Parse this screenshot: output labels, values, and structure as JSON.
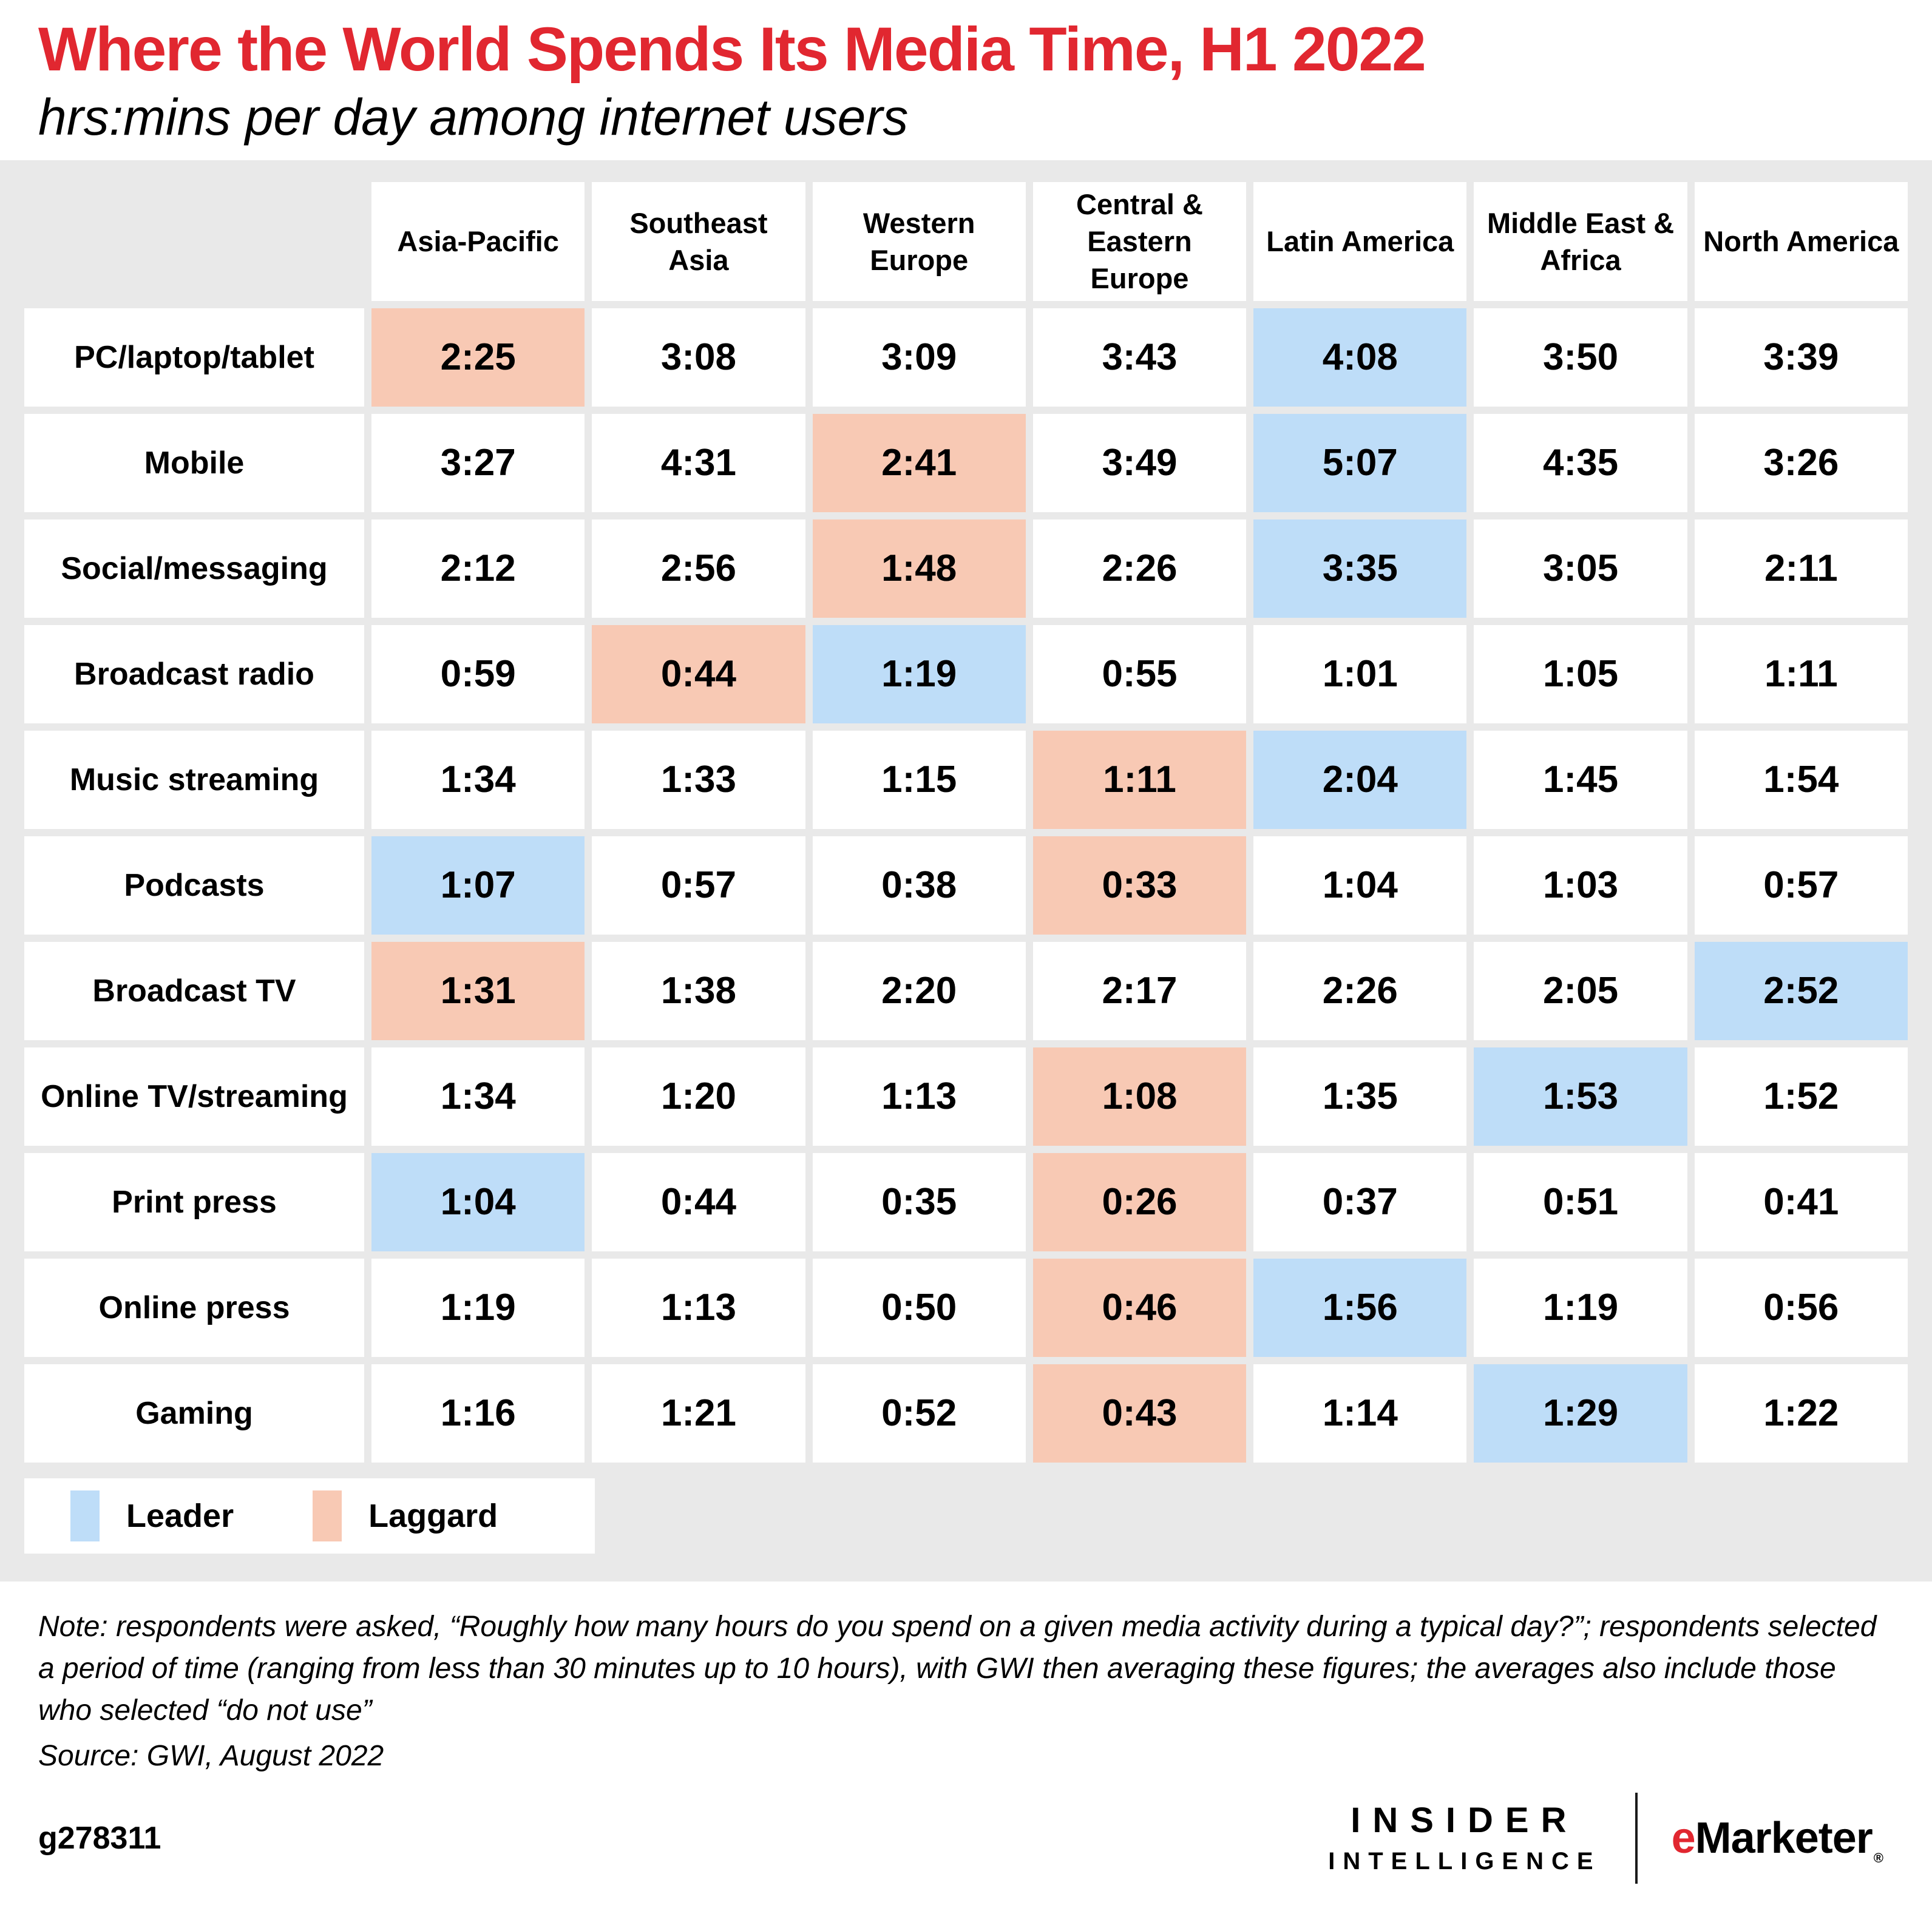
{
  "title": "Where the World Spends Its Media Time, H1 2022",
  "subtitle": "hrs:mins per day among internet users",
  "legend": {
    "leader_label": "Leader",
    "laggard_label": "Laggard"
  },
  "footer": {
    "note": "Note: respondents were asked, “Roughly how many hours do you spend on a given media activity during a typical day?”; respondents selected a period of time (ranging from less than 30 minutes up to 10 hours), with GWI then averaging these figures; the averages also include those who selected “do not use”",
    "source": "Source: GWI, August 2022",
    "chart_id": "g278311"
  },
  "branding": {
    "insider_line1": "INSIDER",
    "insider_line2": "INTELLIGENCE",
    "emarketer_e": "e",
    "emarketer_rest": "Marketer",
    "registered_mark": "®"
  },
  "colors": {
    "accent_red": "#E12730",
    "leader_blue": "#BEDDF8",
    "laggard_salmon": "#F8C9B4",
    "band_gray": "#E9E9E9"
  },
  "chart_data": {
    "type": "table",
    "title": "Where the World Spends Its Media Time, H1 2022",
    "unit": "hrs:mins per day among internet users",
    "categories": [
      "Asia-Pacific",
      "Southeast Asia",
      "Western Europe",
      "Central & Eastern Europe",
      "Latin America",
      "Middle East & Africa",
      "North America"
    ],
    "legend": [
      "Leader",
      "Laggard"
    ],
    "rows": [
      {
        "label": "PC/laptop/tablet",
        "values": [
          "2:25",
          "3:08",
          "3:09",
          "3:43",
          "4:08",
          "3:50",
          "3:39"
        ],
        "leader_index": 4,
        "laggard_index": 0
      },
      {
        "label": "Mobile",
        "values": [
          "3:27",
          "4:31",
          "2:41",
          "3:49",
          "5:07",
          "4:35",
          "3:26"
        ],
        "leader_index": 4,
        "laggard_index": 2
      },
      {
        "label": "Social/messaging",
        "values": [
          "2:12",
          "2:56",
          "1:48",
          "2:26",
          "3:35",
          "3:05",
          "2:11"
        ],
        "leader_index": 4,
        "laggard_index": 2
      },
      {
        "label": "Broadcast radio",
        "values": [
          "0:59",
          "0:44",
          "1:19",
          "0:55",
          "1:01",
          "1:05",
          "1:11"
        ],
        "leader_index": 2,
        "laggard_index": 1
      },
      {
        "label": "Music streaming",
        "values": [
          "1:34",
          "1:33",
          "1:15",
          "1:11",
          "2:04",
          "1:45",
          "1:54"
        ],
        "leader_index": 4,
        "laggard_index": 3
      },
      {
        "label": "Podcasts",
        "values": [
          "1:07",
          "0:57",
          "0:38",
          "0:33",
          "1:04",
          "1:03",
          "0:57"
        ],
        "leader_index": 0,
        "laggard_index": 3
      },
      {
        "label": "Broadcast TV",
        "values": [
          "1:31",
          "1:38",
          "2:20",
          "2:17",
          "2:26",
          "2:05",
          "2:52"
        ],
        "leader_index": 6,
        "laggard_index": 0
      },
      {
        "label": "Online TV/streaming",
        "values": [
          "1:34",
          "1:20",
          "1:13",
          "1:08",
          "1:35",
          "1:53",
          "1:52"
        ],
        "leader_index": 5,
        "laggard_index": 3
      },
      {
        "label": "Print press",
        "values": [
          "1:04",
          "0:44",
          "0:35",
          "0:26",
          "0:37",
          "0:51",
          "0:41"
        ],
        "leader_index": 0,
        "laggard_index": 3
      },
      {
        "label": "Online press",
        "values": [
          "1:19",
          "1:13",
          "0:50",
          "0:46",
          "1:56",
          "1:19",
          "0:56"
        ],
        "leader_index": 4,
        "laggard_index": 3
      },
      {
        "label": "Gaming",
        "values": [
          "1:16",
          "1:21",
          "0:52",
          "0:43",
          "1:14",
          "1:29",
          "1:22"
        ],
        "leader_index": 5,
        "laggard_index": 3
      }
    ]
  }
}
